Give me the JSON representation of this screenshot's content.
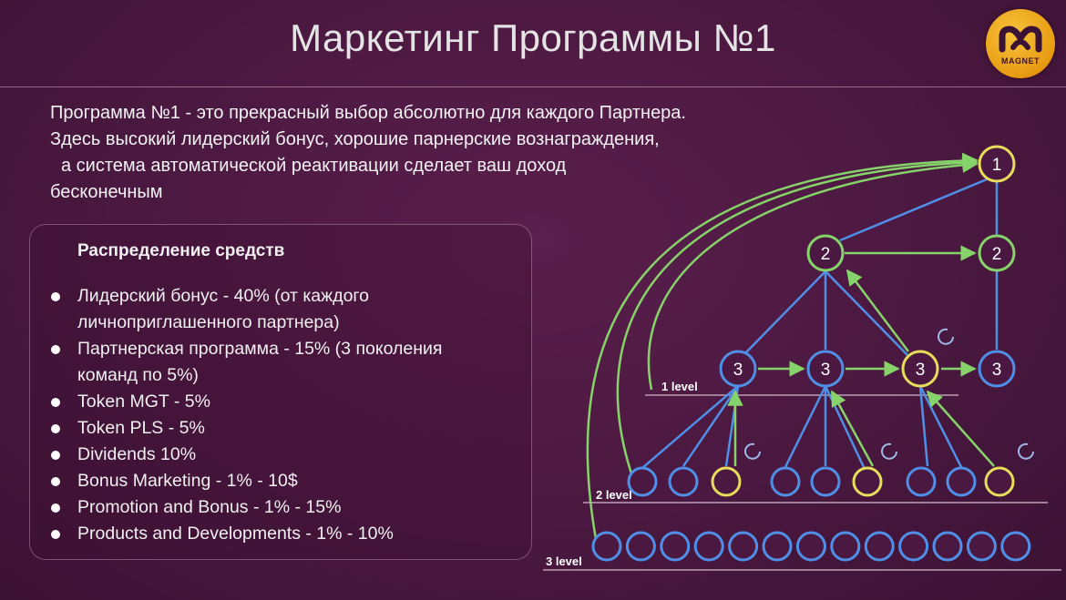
{
  "title": "Маркетинг Программы №1",
  "logo": {
    "text": "MAGNET"
  },
  "intro": {
    "line1": "Программа №1 - это прекрасный выбор абсолютно для каждого Партнера.",
    "line2": "Здесь высокий лидерский бонус, хорошие парнерские вознаграждения,",
    "line3": "а система автоматической реактивации сделает ваш доход",
    "line4": "бесконечным"
  },
  "distribution": {
    "heading": "Распределение средств",
    "items": [
      {
        "line1": "Лидерский бонус - 40% (от каждого",
        "line2": "личноприглашенного партнера)"
      },
      {
        "line1": "Партнерская программа - 15% (3 поколения",
        "line2": "команд по 5%)"
      },
      {
        "line1": "Token MGT - 5%"
      },
      {
        "line1": "Token PLS - 5%"
      },
      {
        "line1": "Dividends 10%"
      },
      {
        "line1": "Bonus Marketing - 1% - 10$"
      },
      {
        "line1": "Promotion and Bonus - 1% - 15%"
      },
      {
        "line1": "Products and Developments - 1% - 10%"
      }
    ]
  },
  "diagram": {
    "level_labels": [
      "1 level",
      "2 level",
      "3 level"
    ],
    "node_labels": {
      "top": "1",
      "second": "2",
      "third": "3"
    },
    "colors": {
      "blue": "#4f8fe6",
      "green": "#86d36a",
      "yellow": "#e6dd5a",
      "level_line": "#9f7f98"
    }
  }
}
